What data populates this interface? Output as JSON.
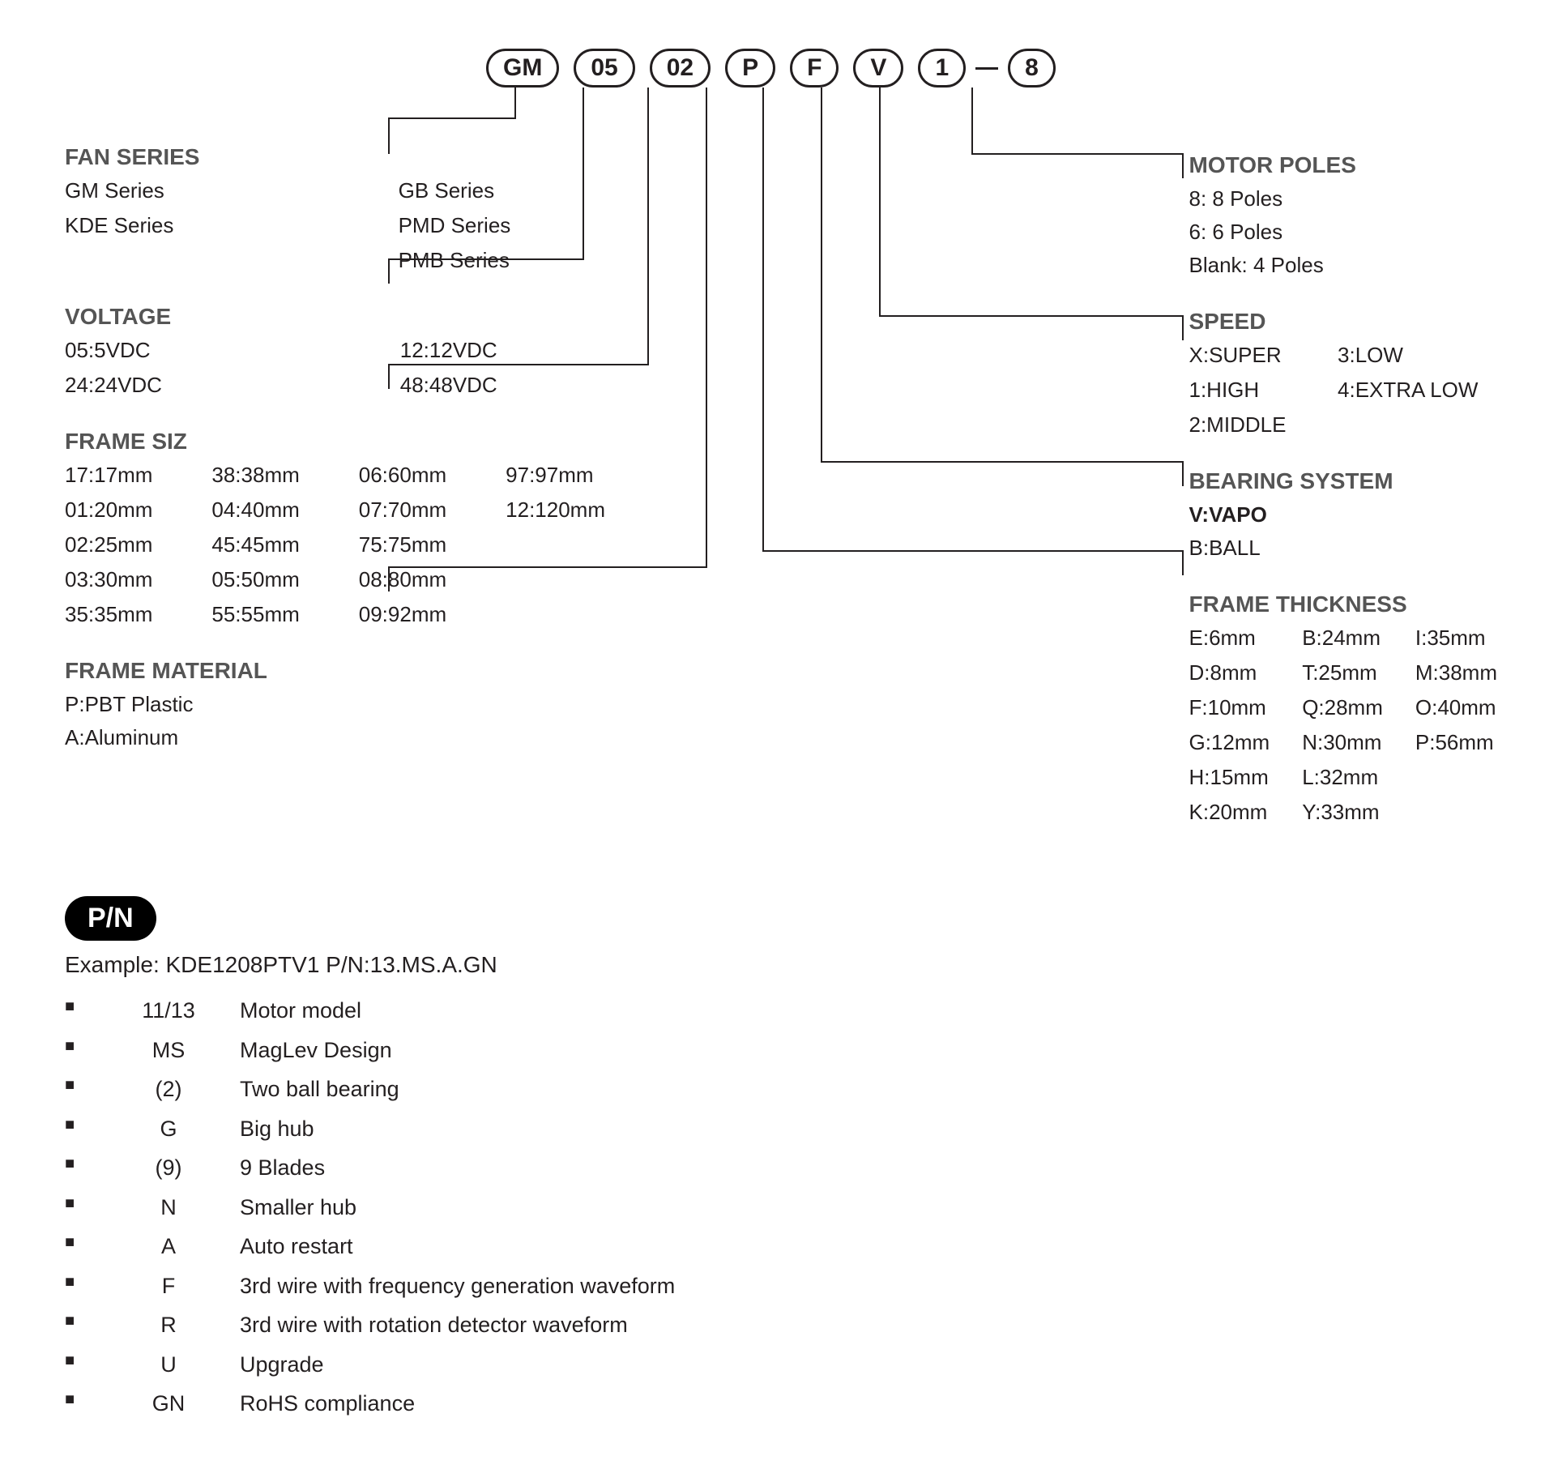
{
  "pills": [
    "GM",
    "05",
    "02",
    "P",
    "F",
    "V",
    "1",
    "8"
  ],
  "left": {
    "fan_series": {
      "title": "FAN SERIES",
      "items": [
        "GM Series",
        "GB Series",
        "KDE Series",
        "PMD Series",
        "",
        "PMB Series"
      ]
    },
    "voltage": {
      "title": "VOLTAGE",
      "items": [
        "05:5VDC",
        "12:12VDC",
        "24:24VDC",
        "48:48VDC"
      ]
    },
    "frame_size": {
      "title": "FRAME SIZ",
      "items": [
        "17:17mm",
        "38:38mm",
        "06:60mm",
        "97:97mm",
        "01:20mm",
        "04:40mm",
        "07:70mm",
        "12:120mm",
        "02:25mm",
        "45:45mm",
        "75:75mm",
        "",
        "03:30mm",
        "05:50mm",
        "08:80mm",
        "",
        "35:35mm",
        "55:55mm",
        "09:92mm",
        ""
      ]
    },
    "frame_material": {
      "title": "FRAME MATERIAL",
      "items": [
        "P:PBT Plastic",
        "A:Aluminum"
      ]
    }
  },
  "right": {
    "motor_poles": {
      "title": "MOTOR POLES",
      "items": [
        "8: 8 Poles",
        "6: 6 Poles",
        "Blank: 4 Poles"
      ]
    },
    "speed": {
      "title": "SPEED",
      "items": [
        "X:SUPER",
        "3:LOW",
        "1:HIGH",
        "4:EXTRA  LOW",
        "2:MIDDLE",
        ""
      ]
    },
    "bearing": {
      "title": "BEARING SYSTEM",
      "items": [
        "V:VAPO",
        "B:BALL"
      ],
      "bold_index": 0
    },
    "frame_thickness": {
      "title": "FRAME THICKNESS",
      "items": [
        "E:6mm",
        "B:24mm",
        "I:35mm",
        "D:8mm",
        "T:25mm",
        "M:38mm",
        "F:10mm",
        "Q:28mm",
        "O:40mm",
        "G:12mm",
        "N:30mm",
        "P:56mm",
        "H:15mm",
        "L:32mm",
        "",
        "K:20mm",
        "Y:33mm",
        ""
      ]
    }
  },
  "pn": {
    "badge": "P/N",
    "example": "Example: KDE1208PTV1  P/N:13.MS.A.GN",
    "rows": [
      {
        "code": "11/13",
        "desc": "Motor model"
      },
      {
        "code": "MS",
        "desc": "MagLev Design"
      },
      {
        "code": "(2)",
        "desc": "Two ball bearing"
      },
      {
        "code": "G",
        "desc": "Big hub"
      },
      {
        "code": "(9)",
        "desc": "9 Blades"
      },
      {
        "code": "N",
        "desc": "Smaller hub"
      },
      {
        "code": "A",
        "desc": "Auto restart"
      },
      {
        "code": "F",
        "desc": "3rd wire with frequency generation waveform"
      },
      {
        "code": "R",
        "desc": "3rd wire with rotation detector waveform"
      },
      {
        "code": "U",
        "desc": "Upgrade"
      },
      {
        "code": "GN",
        "desc": "RoHS compliance"
      }
    ]
  },
  "colors": {
    "text": "#231f20",
    "section_title": "#555555",
    "pill_border": "#231f20",
    "connector": "#231f20",
    "badge_bg": "#000000",
    "badge_fg": "#ffffff"
  }
}
